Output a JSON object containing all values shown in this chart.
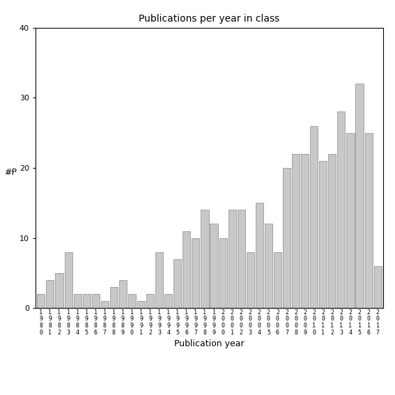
{
  "title": "Publications per year in class",
  "xlabel": "Publication year",
  "ylabel": "#P",
  "ylim": [
    0,
    40
  ],
  "yticks": [
    0,
    10,
    20,
    30,
    40
  ],
  "years": [
    "1980",
    "1981",
    "1982",
    "1983",
    "1984",
    "1985",
    "1986",
    "1987",
    "1988",
    "1989",
    "1990",
    "1991",
    "1992",
    "1993",
    "1994",
    "1995",
    "1996",
    "1997",
    "1998",
    "1999",
    "2000",
    "2001",
    "2002",
    "2003",
    "2004",
    "2005",
    "2006",
    "2007",
    "2008",
    "2009",
    "2010",
    "2011",
    "2012",
    "2013",
    "2014",
    "2015",
    "2016",
    "2017"
  ],
  "values": [
    2,
    4,
    5,
    8,
    2,
    2,
    2,
    1,
    3,
    4,
    2,
    1,
    2,
    8,
    2,
    7,
    11,
    10,
    14,
    12,
    10,
    14,
    14,
    8,
    15,
    12,
    8,
    20,
    22,
    22,
    26,
    21,
    22,
    28,
    25,
    32,
    25,
    6
  ],
  "bar_color": "#c8c8c8",
  "bar_edge_color": "#888888",
  "bg_color": "#ffffff",
  "title_fontsize": 10,
  "axis_label_fontsize": 9,
  "tick_fontsize": 8,
  "xtick_fontsize": 6
}
